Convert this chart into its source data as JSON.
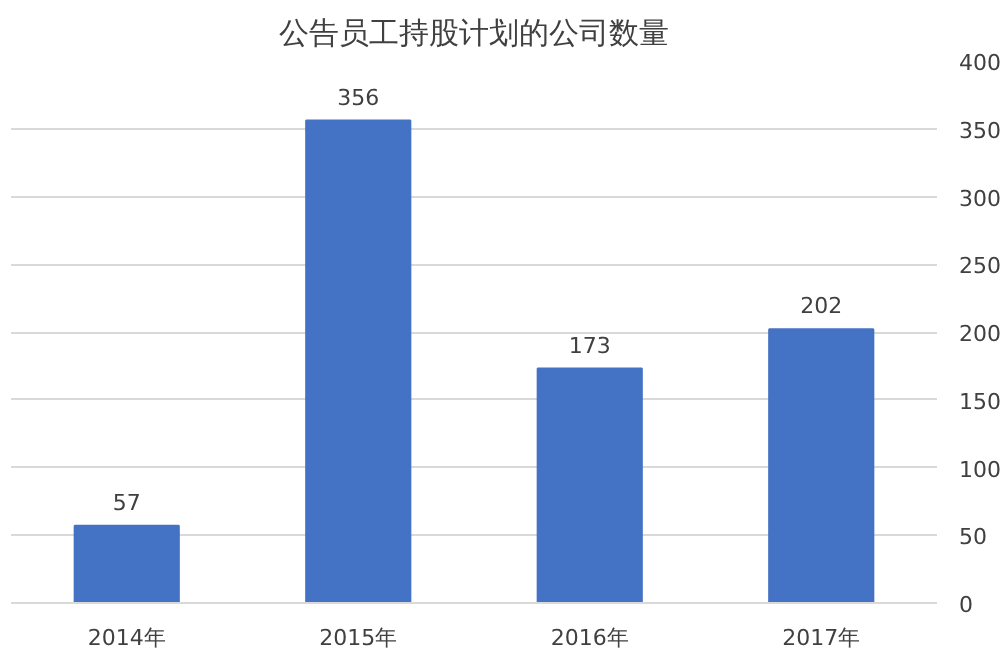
{
  "chart_data": {
    "type": "bar",
    "title": "公告员工持股计划的公司数量",
    "categories": [
      "2014年",
      "2015年",
      "2016年",
      "2017年"
    ],
    "values": [
      57,
      356,
      173,
      202
    ],
    "color": "#4472c4",
    "ylim": [
      0,
      400
    ],
    "yticks": [
      0,
      50,
      100,
      150,
      200,
      250,
      300,
      350,
      400
    ],
    "grid": "y",
    "data_labels": true
  }
}
